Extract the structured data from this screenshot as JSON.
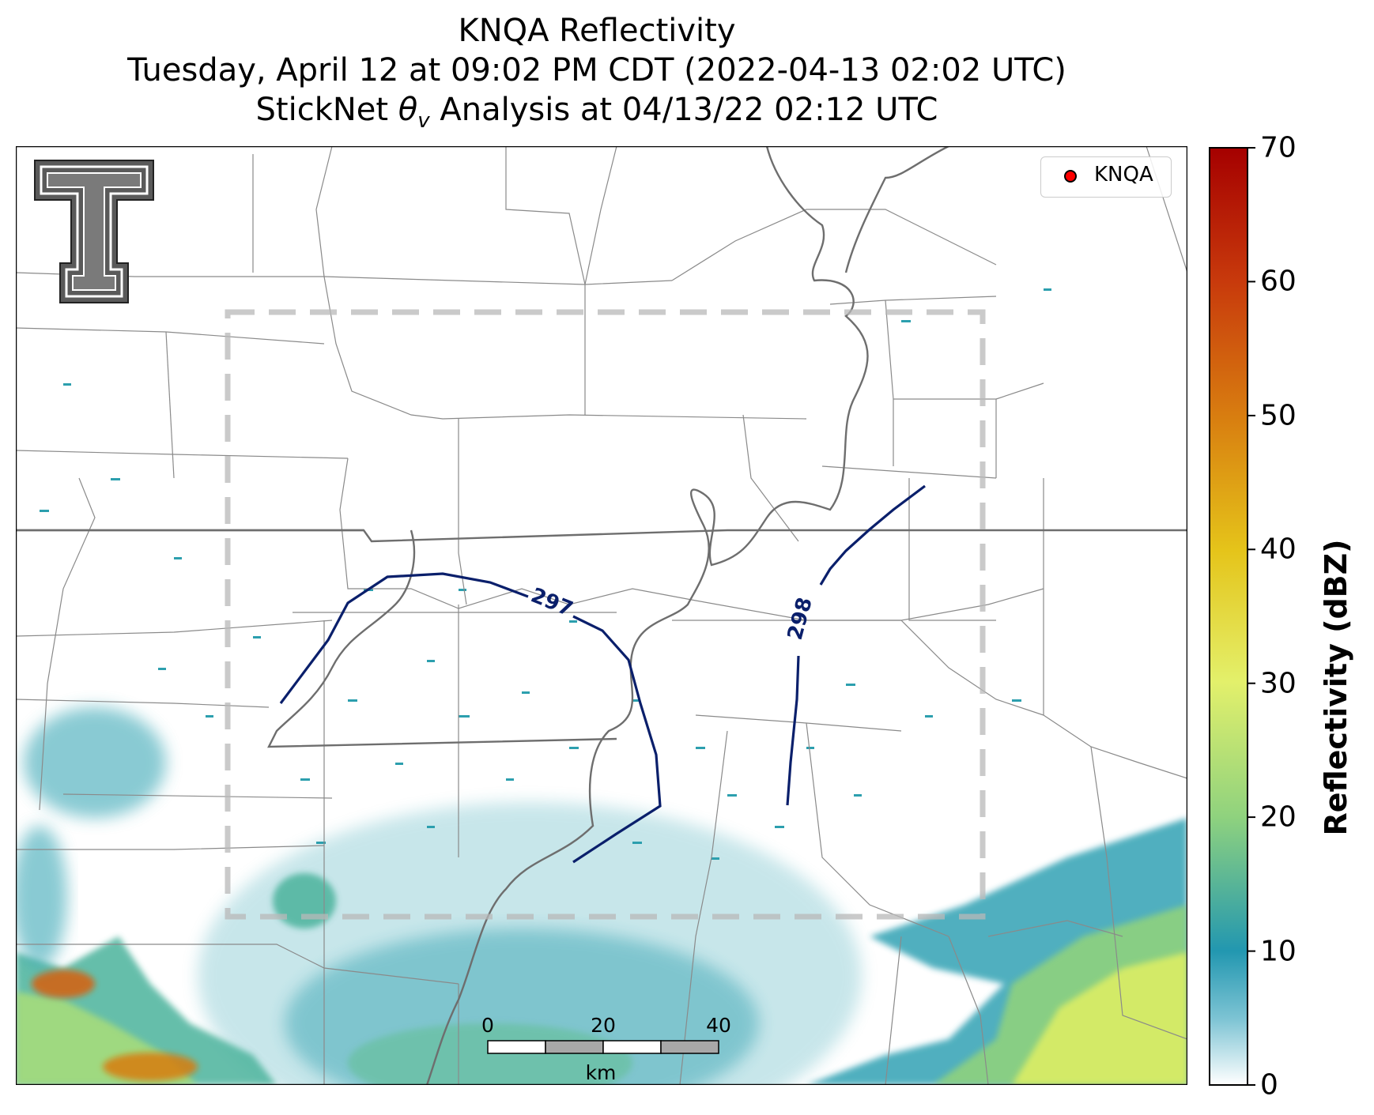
{
  "title": {
    "line1": "KNQA Reflectivity",
    "line2": "Tuesday, April 12 at 09:02 PM CDT (2022-04-13 02:02 UTC)",
    "line3_prefix": "StickNet ",
    "line3_symbol": "θ",
    "line3_sub": "v",
    "line3_suffix": " Analysis at 04/13/22 02:12 UTC"
  },
  "legend": {
    "marker_label": "KNQA",
    "marker_color": "#ff0000"
  },
  "colorbar": {
    "label": "Reflectivity (dBZ)",
    "ticks": [
      "0",
      "10",
      "20",
      "30",
      "40",
      "50",
      "60",
      "70"
    ],
    "min": 0,
    "max": 70,
    "colors": [
      "#ffffff",
      "#2297b0",
      "#8fd27e",
      "#e3f06b",
      "#e5c41a",
      "#d87d10",
      "#c83a0c",
      "#a50000"
    ]
  },
  "contours": [
    {
      "value": "297",
      "color": "#0a1f6b"
    },
    {
      "value": "298",
      "color": "#0a1f6b"
    }
  ],
  "scalebar": {
    "ticks": [
      "0",
      "20",
      "40"
    ],
    "unit": "km"
  },
  "logo": {
    "name": "texas-tech-double-t-logo"
  }
}
